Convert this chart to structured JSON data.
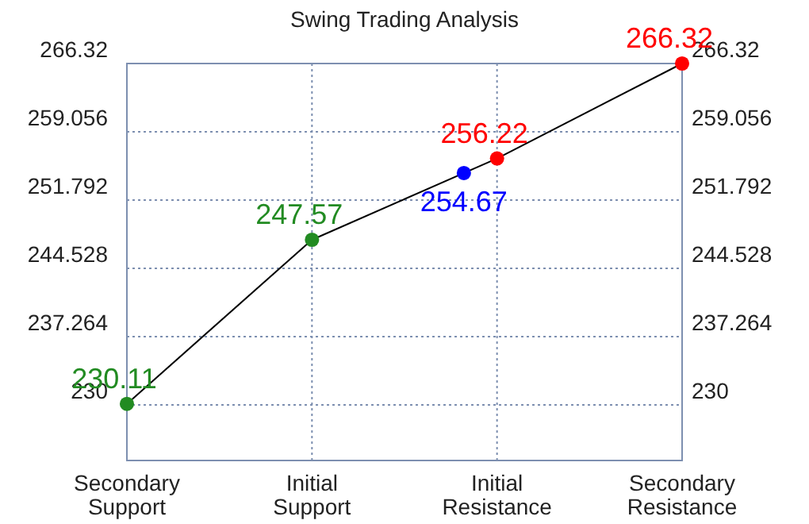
{
  "chart_data": {
    "type": "line",
    "title": "Swing Trading Analysis",
    "categories": [
      "Secondary\nSupport",
      "Initial\nSupport",
      "Initial\nResistance",
      "Secondary\nResistance"
    ],
    "ylim": [
      224.09,
      266.32
    ],
    "yticks": [
      230,
      237.264,
      244.528,
      251.792,
      259.056,
      266.32
    ],
    "y2lim": [
      224.09,
      266.32
    ],
    "y2ticks": [
      230,
      237.264,
      244.528,
      251.792,
      259.056,
      266.32
    ],
    "grid": true,
    "marker": "circle",
    "data_labels": true,
    "series": [
      {
        "color": "#000000",
        "colors": [
          "#228b22",
          "#228b22",
          "#ff0000",
          "#ff0000"
        ],
        "values": [
          230.11,
          247.57,
          256.22,
          266.32
        ]
      },
      {
        "type": "scatter",
        "color": "#0000ff",
        "values": [
          null,
          null,
          254.67,
          null
        ]
      }
    ]
  }
}
